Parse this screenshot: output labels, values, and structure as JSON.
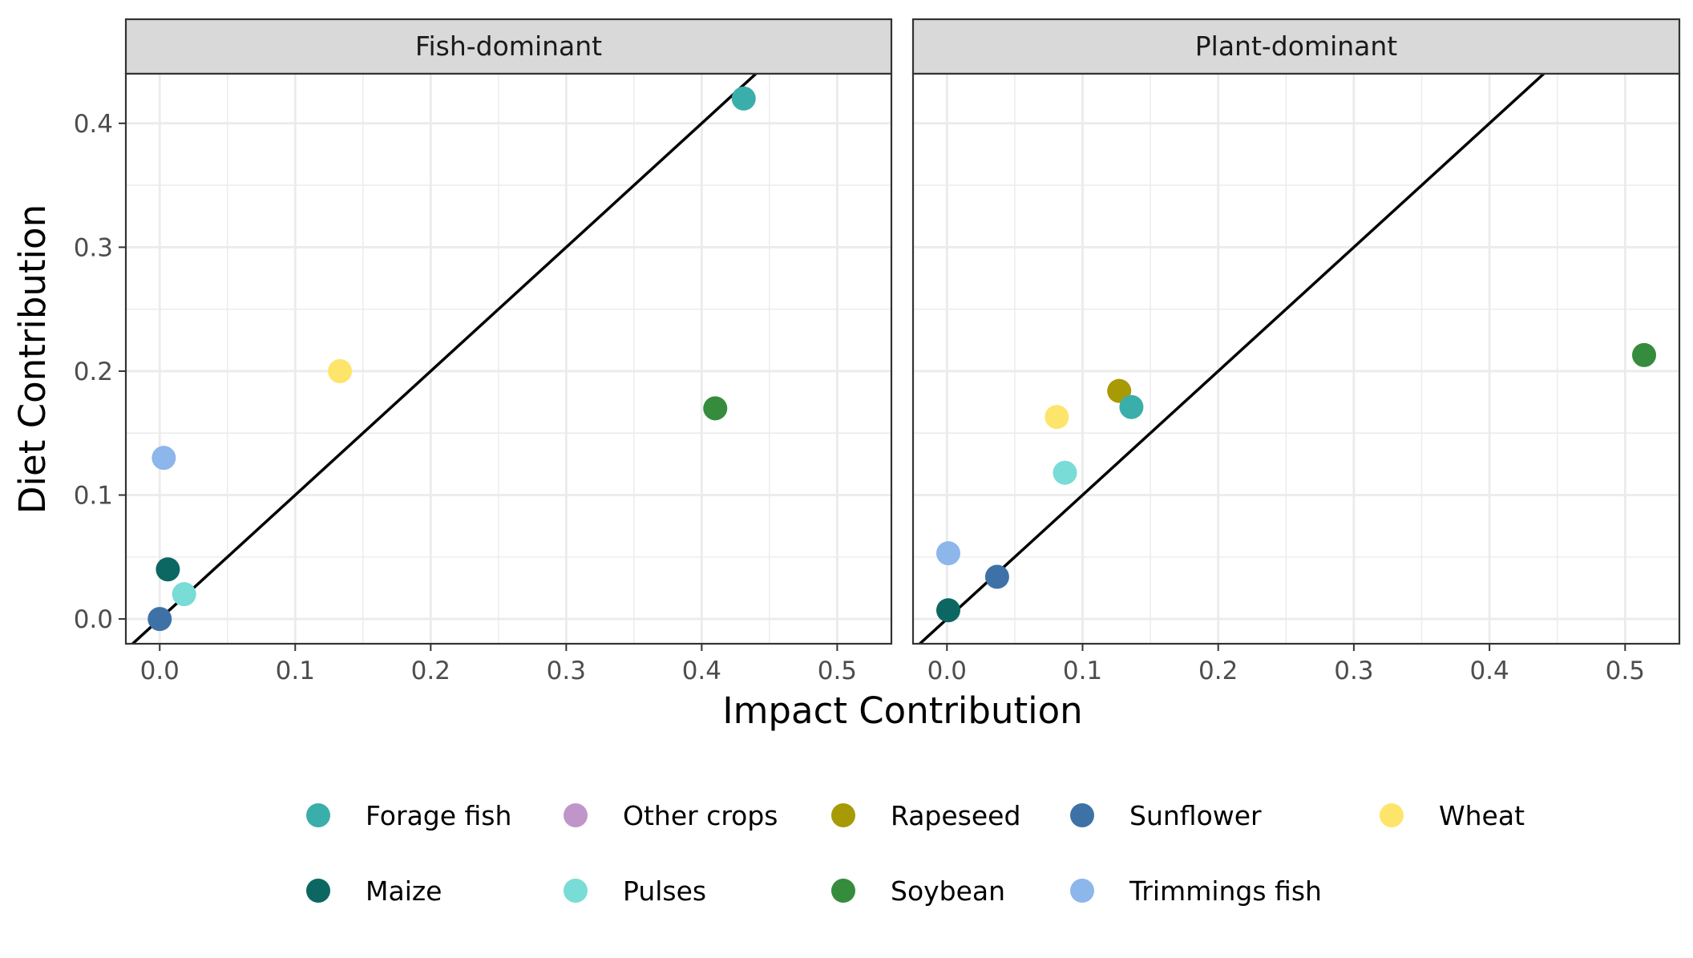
{
  "chart_data": {
    "type": "scatter",
    "xlabel": "Impact Contribution",
    "ylabel": "Diet Contribution",
    "xlim": [
      -0.025,
      0.54
    ],
    "ylim": [
      -0.02,
      0.44
    ],
    "x_ticks": [
      "0.0",
      "0.1",
      "0.2",
      "0.3",
      "0.4",
      "0.5"
    ],
    "y_ticks": [
      "0.0",
      "0.1",
      "0.2",
      "0.3",
      "0.4"
    ],
    "grid": true,
    "reference_line": "y = x",
    "legend_position": "bottom",
    "colors": {
      "Forage fish": "#3aaeaa",
      "Other crops": "#c095c9",
      "Rapeseed": "#a89a05",
      "Sunflower": "#3e72a7",
      "Wheat": "#fde56b",
      "Maize": "#0c6762",
      "Pulses": "#79dcd6",
      "Soybean": "#358c3d",
      "Trimmings fish": "#8db6ea"
    },
    "legend": [
      "Forage fish",
      "Other crops",
      "Rapeseed",
      "Sunflower",
      "Wheat",
      "Maize",
      "Pulses",
      "Soybean",
      "Trimmings fish"
    ],
    "panels": [
      {
        "title": "Fish-dominant",
        "points": [
          {
            "name": "Forage fish",
            "x": 0.431,
            "y": 0.42
          },
          {
            "name": "Soybean",
            "x": 0.41,
            "y": 0.17
          },
          {
            "name": "Wheat",
            "x": 0.133,
            "y": 0.2
          },
          {
            "name": "Trimmings fish",
            "x": 0.003,
            "y": 0.13
          },
          {
            "name": "Maize",
            "x": 0.006,
            "y": 0.04
          },
          {
            "name": "Pulses",
            "x": 0.018,
            "y": 0.02
          },
          {
            "name": "Sunflower",
            "x": 0.0,
            "y": 0.0
          }
        ]
      },
      {
        "title": "Plant-dominant",
        "points": [
          {
            "name": "Soybean",
            "x": 0.514,
            "y": 0.213
          },
          {
            "name": "Rapeseed",
            "x": 0.127,
            "y": 0.184
          },
          {
            "name": "Forage fish",
            "x": 0.136,
            "y": 0.171
          },
          {
            "name": "Wheat",
            "x": 0.081,
            "y": 0.163
          },
          {
            "name": "Pulses",
            "x": 0.087,
            "y": 0.118
          },
          {
            "name": "Trimmings fish",
            "x": 0.001,
            "y": 0.053
          },
          {
            "name": "Sunflower",
            "x": 0.037,
            "y": 0.034
          },
          {
            "name": "Maize",
            "x": 0.001,
            "y": 0.007
          }
        ]
      }
    ]
  }
}
